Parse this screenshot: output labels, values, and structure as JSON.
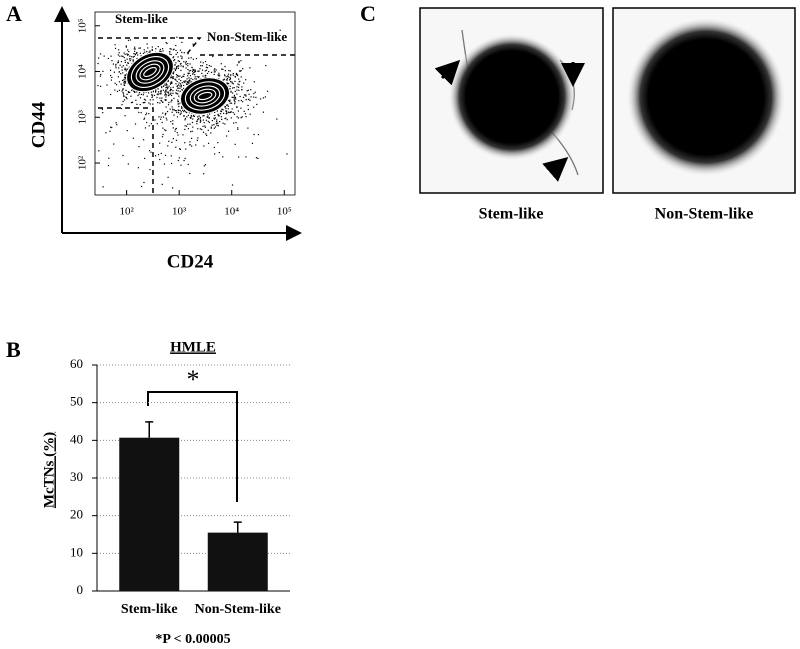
{
  "panels": [
    "A",
    "B",
    "C"
  ],
  "chart_data": [
    {
      "type": "flow-cytometry",
      "x_label": "CD24",
      "y_label": "CD44",
      "annotations": [
        "Stem-like",
        "Non-Stem-like"
      ],
      "log_scale": true,
      "xlim": [
        25,
        160000
      ],
      "ylim": [
        20,
        200000
      ],
      "xticks": [
        {
          "value": 100,
          "label": "10²"
        },
        {
          "value": 1000,
          "label": "10³"
        },
        {
          "value": 10000,
          "label": "10⁴"
        },
        {
          "value": 100000,
          "label": "10⁵"
        }
      ],
      "yticks": [
        {
          "value": 100,
          "label": "10²"
        },
        {
          "value": 1000,
          "label": "10³"
        },
        {
          "value": 10000,
          "label": "10⁴"
        },
        {
          "value": 100000,
          "label": "10⁵"
        }
      ]
    },
    {
      "type": "bar",
      "title": "HMLE",
      "y_label": "McTNs (%)",
      "categories": [
        "Stem-like",
        "Non-Stem-like"
      ],
      "values": [
        40.7,
        15.5
      ],
      "errors": [
        4.2,
        2.8
      ],
      "color": "#111111",
      "ylim": [
        0,
        60
      ],
      "yticks": [
        0,
        10,
        20,
        30,
        40,
        50,
        60
      ],
      "grid": true,
      "annotations": [
        "*"
      ],
      "footnote": "*P < 0.00005"
    }
  ],
  "images": {
    "labels": [
      "Stem-like",
      "Non-Stem-like"
    ]
  }
}
